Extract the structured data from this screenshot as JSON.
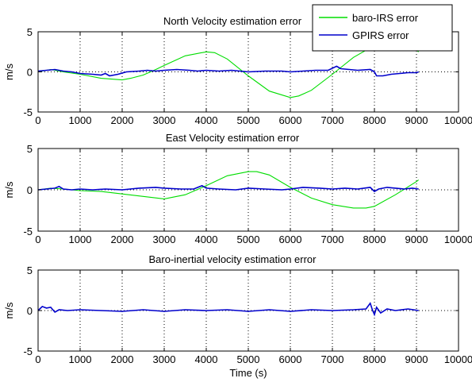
{
  "chart_data": [
    {
      "type": "line",
      "title": "North Velocity estimation error",
      "ylabel": "m/s",
      "xlabel": "",
      "xlim": [
        0,
        10000
      ],
      "ylim": [
        -5,
        5
      ],
      "xticks": [
        0,
        1000,
        2000,
        3000,
        4000,
        5000,
        6000,
        7000,
        8000,
        9000,
        10000
      ],
      "yticks": [
        -5,
        0,
        5
      ],
      "grid": "dotted",
      "legend_position": "top-right",
      "series": [
        {
          "name": "baro-IRS error",
          "color": "#00dd00",
          "x": [
            0,
            300,
            600,
            1000,
            1500,
            2000,
            2200,
            2500,
            2800,
            3000,
            3500,
            4000,
            4200,
            4500,
            5000,
            5500,
            6000,
            6200,
            6500,
            7000,
            7500,
            8000,
            8500,
            8800,
            9050
          ],
          "y": [
            0,
            0.3,
            0,
            -0.3,
            -0.8,
            -1.0,
            -0.8,
            -0.4,
            0.3,
            0.8,
            2.0,
            2.5,
            2.4,
            1.6,
            -0.5,
            -2.4,
            -3.2,
            -3.0,
            -2.3,
            -0.3,
            1.8,
            3.3,
            3.9,
            3.5,
            2.5
          ]
        },
        {
          "name": "GPIRS error",
          "color": "#0000cc",
          "x": [
            0,
            200,
            400,
            600,
            800,
            1000,
            1300,
            1500,
            1600,
            1700,
            1900,
            2100,
            2400,
            2600,
            2800,
            3000,
            3300,
            3600,
            3800,
            4000,
            4300,
            4600,
            5000,
            5400,
            5800,
            6000,
            6300,
            6600,
            6900,
            7100,
            7200,
            7400,
            7600,
            7900,
            8000,
            8050,
            8200,
            8400,
            8600,
            8800,
            9000,
            9050
          ],
          "y": [
            0.1,
            0.2,
            0.3,
            0.1,
            0,
            -0.2,
            -0.3,
            -0.4,
            -0.2,
            -0.5,
            -0.3,
            0,
            0.1,
            0.2,
            0.1,
            0.2,
            0.3,
            0.2,
            0.1,
            0.2,
            0.1,
            0.2,
            0,
            0.1,
            0.1,
            0,
            0.1,
            0.2,
            0.2,
            0.7,
            0.4,
            0.3,
            0.2,
            0.3,
            0,
            -0.5,
            -0.5,
            -0.3,
            -0.2,
            -0.1,
            -0.1,
            0
          ]
        }
      ]
    },
    {
      "type": "line",
      "title": "East Velocity estimation error",
      "ylabel": "m/s",
      "xlabel": "",
      "xlim": [
        0,
        10000
      ],
      "ylim": [
        -5,
        5
      ],
      "xticks": [
        0,
        1000,
        2000,
        3000,
        4000,
        5000,
        6000,
        7000,
        8000,
        9000,
        10000
      ],
      "yticks": [
        -5,
        0,
        5
      ],
      "grid": "dotted",
      "series": [
        {
          "color": "#00dd00",
          "x": [
            0,
            300,
            600,
            1000,
            1500,
            2000,
            2500,
            3000,
            3500,
            4000,
            4500,
            5000,
            5200,
            5500,
            6000,
            6500,
            7000,
            7500,
            7800,
            8000,
            8500,
            9000,
            9050
          ],
          "y": [
            0,
            0.2,
            0.1,
            -0.1,
            -0.2,
            -0.5,
            -0.8,
            -1.1,
            -0.6,
            0.5,
            1.7,
            2.2,
            2.2,
            1.8,
            0.3,
            -1.0,
            -1.8,
            -2.2,
            -2.2,
            -2.0,
            -0.6,
            1.0,
            1.2
          ]
        },
        {
          "color": "#0000cc",
          "x": [
            0,
            200,
            400,
            500,
            600,
            800,
            1000,
            1300,
            1600,
            2000,
            2400,
            2800,
            3000,
            3400,
            3700,
            3800,
            3900,
            4000,
            4300,
            4700,
            5000,
            5400,
            5800,
            6000,
            6300,
            6700,
            7000,
            7300,
            7600,
            7900,
            8000,
            8100,
            8300,
            8500,
            8700,
            8900,
            9050
          ],
          "y": [
            0,
            0.1,
            0.2,
            0.4,
            0.1,
            0,
            0.1,
            0,
            0.1,
            0,
            0.2,
            0.3,
            0.2,
            0.1,
            0.1,
            0.3,
            0.5,
            0.2,
            0.1,
            0,
            0.2,
            0.1,
            0,
            0.1,
            0.3,
            0.2,
            0.1,
            0.2,
            0.1,
            0.3,
            -0.2,
            0.1,
            0.3,
            0.2,
            0.1,
            0.2,
            0.1
          ]
        }
      ]
    },
    {
      "type": "line",
      "title": "Baro-inertial velocity estimation error",
      "ylabel": "m/s",
      "xlabel": "Time (s)",
      "xlim": [
        0,
        10000
      ],
      "ylim": [
        -5,
        5
      ],
      "xticks": [
        0,
        1000,
        2000,
        3000,
        4000,
        5000,
        6000,
        7000,
        8000,
        9000,
        10000
      ],
      "yticks": [
        -5,
        0,
        5
      ],
      "grid": "dotted",
      "series": [
        {
          "color": "#0000cc",
          "x": [
            0,
            100,
            200,
            300,
            400,
            500,
            700,
            1000,
            1500,
            2000,
            2500,
            3000,
            3500,
            4000,
            4500,
            5000,
            5500,
            6000,
            6500,
            7000,
            7500,
            7800,
            7900,
            7950,
            8000,
            8050,
            8150,
            8300,
            8500,
            8800,
            9050
          ],
          "y": [
            0,
            0.5,
            0.3,
            0.4,
            -0.2,
            0.1,
            0,
            0.1,
            0,
            -0.1,
            0.1,
            -0.1,
            0.1,
            0,
            0.1,
            -0.1,
            0.1,
            -0.1,
            0.1,
            0,
            0.1,
            0.2,
            0.9,
            0.1,
            -0.5,
            0.4,
            -0.3,
            0.2,
            0,
            0.2,
            0
          ]
        }
      ]
    }
  ]
}
